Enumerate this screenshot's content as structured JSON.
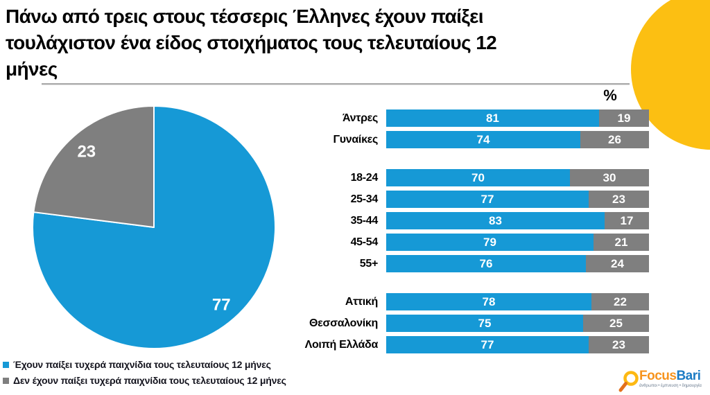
{
  "title_lines": [
    "Πάνω από τρεις στους τέσσερις Έλληνες έχουν παίξει",
    "τουλάχιστον ένα είδος στοιχήματος τους τελευταίους 12",
    "μήνες"
  ],
  "percent_label": "%",
  "colors": {
    "played_blue": "#1699D6",
    "not_played_gray": "#7F7F7F",
    "accent_yellow": "#FCBF12",
    "logo_orange": "#F7941E",
    "logo_blue": "#1C7CC4"
  },
  "legend": [
    {
      "label": "Έχουν παίξει τυχερά παιχνίδια τους τελευταίους 12 μήνες",
      "color": "#1699D6"
    },
    {
      "label": "Δεν έχουν παίξει τυχερά παιχνίδια τους τελευταίους 12 μήνες",
      "color": "#7F7F7F"
    }
  ],
  "logo": {
    "word_focus": "Focus",
    "word_bari": "Bari",
    "tagline": "άνθρωποι • έμπνευση • δημιουργία"
  },
  "chart_data": [
    {
      "type": "pie",
      "title": "",
      "labels": [
        "Έχουν παίξει τυχερά παιχνίδια τους τελευταίους 12 μήνες",
        "Δεν έχουν παίξει τυχερά παιχνίδια τους τελευταίους 12 μήνες"
      ],
      "values": [
        77,
        23
      ],
      "colors": [
        "#1699D6",
        "#7F7F7F"
      ],
      "start_angle_deg": 0,
      "direction": "clockwise",
      "data_labels": [
        "77",
        "23"
      ]
    },
    {
      "type": "bar",
      "orientation": "horizontal",
      "stacked": true,
      "unit": "%",
      "xlim": [
        0,
        100
      ],
      "groups": [
        {
          "categories": [
            "Άντρες",
            "Γυναίκες"
          ],
          "series": [
            {
              "name": "Έχουν παίξει",
              "color": "#1699D6",
              "values": [
                81,
                74
              ]
            },
            {
              "name": "Δεν έχουν παίξει",
              "color": "#7F7F7F",
              "values": [
                19,
                26
              ]
            }
          ]
        },
        {
          "categories": [
            "18-24",
            "25-34",
            "35-44",
            "45-54",
            "55+"
          ],
          "series": [
            {
              "name": "Έχουν παίξει",
              "color": "#1699D6",
              "values": [
                70,
                77,
                83,
                79,
                76
              ]
            },
            {
              "name": "Δεν έχουν παίξει",
              "color": "#7F7F7F",
              "values": [
                30,
                23,
                17,
                21,
                24
              ]
            }
          ]
        },
        {
          "categories": [
            "Αττική",
            "Θεσσαλονίκη",
            "Λοιπή Ελλάδα"
          ],
          "series": [
            {
              "name": "Έχουν παίξει",
              "color": "#1699D6",
              "values": [
                78,
                75,
                77
              ]
            },
            {
              "name": "Δεν έχουν παίξει",
              "color": "#7F7F7F",
              "values": [
                22,
                25,
                23
              ]
            }
          ]
        }
      ]
    }
  ]
}
